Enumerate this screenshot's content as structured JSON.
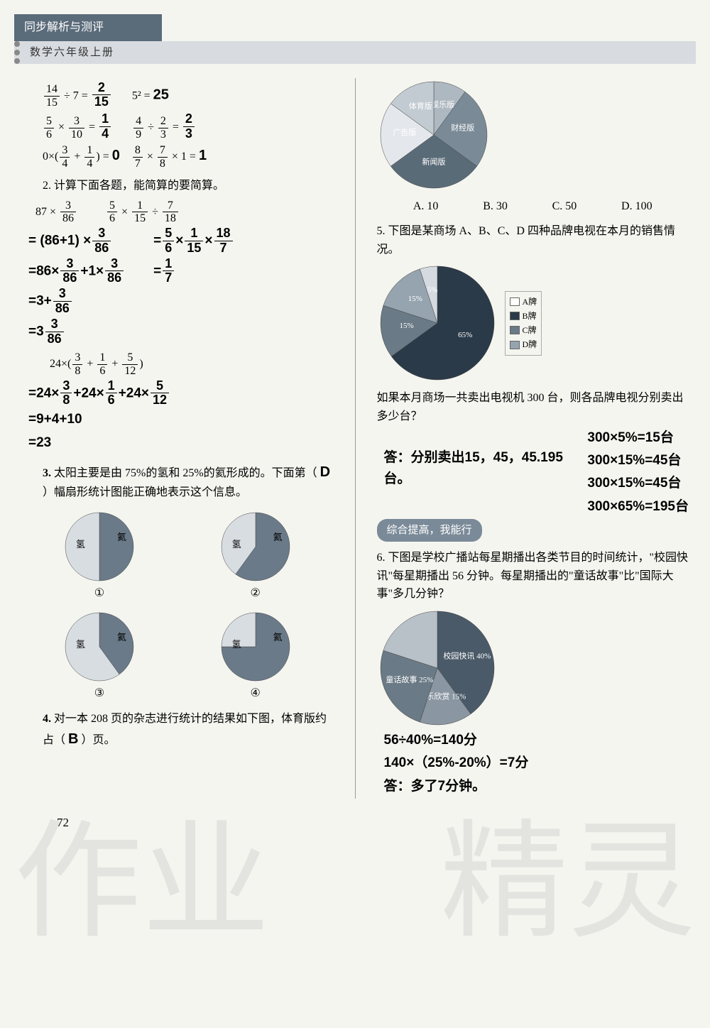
{
  "header": {
    "title": "同步解析与测评",
    "subtitle": "数学六年级上册"
  },
  "q1": {
    "eqs": [
      {
        "lhs": "14/15 ÷ 7 =",
        "ans": "2/15"
      },
      {
        "lhs": "5² =",
        "ans": "25"
      },
      {
        "lhs": "5/6 × 3/10 =",
        "ans": "1/4"
      },
      {
        "lhs": "4/9 ÷ 2/3 =",
        "ans": "2/3"
      },
      {
        "lhs": "0×(3/4 + 1/4) =",
        "ans": "0"
      },
      {
        "lhs": "8/7 × 7/8 × 1 =",
        "ans": "1"
      }
    ]
  },
  "q2": {
    "title": "2. 计算下面各题，能简算的要简算。",
    "prob_a": "87 × 3/86",
    "prob_b": "5/6 × 1/15 ÷ 7/18",
    "prob_c": "24×(3/8 + 1/6 + 5/12)",
    "work_a": [
      "= (86+1) × 3/86",
      "=86× 3/86 +1× 3/86",
      "=3+ 3/86",
      "=3 3/86"
    ],
    "work_b": [
      "= 5/6 × 1/15 × 18/7",
      "= 1/7"
    ],
    "work_c": [
      "=24× 3/8 +24× 1/6 +24× 5/12",
      "=9+4+10",
      "=23"
    ]
  },
  "q3": {
    "text": "3. 太阳主要是由 75%的氢和 25%的氦形成的。下面第（     ）幅扇形统计图能正确地表示这个信息。",
    "answer": "D",
    "labels": {
      "h": "氢",
      "he": "氦"
    },
    "opts": [
      "①",
      "②",
      "③",
      "④"
    ],
    "colors": {
      "dark": "#6a7a88",
      "light": "#d8dde2"
    }
  },
  "q4": {
    "text": "4. 对一本 208 页的杂志进行统计的结果如下图，体育版约占（     ）页。",
    "answer": "B",
    "options": [
      "A. 10",
      "B. 30",
      "C. 50",
      "D. 100"
    ],
    "pie": {
      "slices": [
        {
          "label": "娱乐版",
          "value": 10,
          "color": "#aeb8c0"
        },
        {
          "label": "财经版",
          "value": 25,
          "color": "#7a8a96"
        },
        {
          "label": "新闻版",
          "value": 30,
          "color": "#5a6b78"
        },
        {
          "label": "广告版",
          "value": 20,
          "color": "#e4e8ec"
        },
        {
          "label": "体育版",
          "value": 15,
          "color": "#c2cad2"
        }
      ]
    }
  },
  "q5": {
    "text": "5. 下图是某商场 A、B、C、D 四种品牌电视在本月的销售情况。",
    "pie": {
      "slices": [
        {
          "label": "65%",
          "value": 65,
          "color": "#2a3a48"
        },
        {
          "label": "15%",
          "value": 15,
          "color": "#6a7a86"
        },
        {
          "label": "15%",
          "value": 15,
          "color": "#96a4b0"
        },
        {
          "label": "5%",
          "value": 5,
          "color": "#d4dae0"
        }
      ],
      "legend": [
        {
          "label": "A牌",
          "color": "#ffffff"
        },
        {
          "label": "B牌",
          "color": "#2a3a48"
        },
        {
          "label": "C牌",
          "color": "#6a7a86"
        },
        {
          "label": "D牌",
          "color": "#96a4b0"
        }
      ]
    },
    "text2": "如果本月商场一共卖出电视机 300 台，则各品牌电视分别卖出多少台？",
    "ans_lines": [
      "300×5%=15台",
      "300×15%=45台",
      "300×15%=45台",
      "300×65%=195台"
    ],
    "ans_left": "答：分别卖出15，45，45.195台。",
    "badge": "综合提高，我能行"
  },
  "q6": {
    "text": "6. 下图是学校广播站每星期播出各类节目的时间统计，\"校园快讯\"每星期播出 56 分钟。每星期播出的\"童话故事\"比\"国际大事\"多几分钟？",
    "pie": {
      "slices": [
        {
          "label": "校园快讯 40%",
          "value": 40,
          "color": "#4a5a68"
        },
        {
          "label": "音乐欣赏 15%",
          "value": 15,
          "color": "#8a96a2"
        },
        {
          "label": "童话故事 25%",
          "value": 25,
          "color": "#6a7a86"
        },
        {
          "label": "",
          "value": 20,
          "color": "#b8c0c8"
        }
      ]
    },
    "work": [
      "56÷40%=140分",
      "140×（25%-20%）=7分",
      "答：多了7分钟。"
    ]
  },
  "page_num": "72",
  "watermark": {
    "left": "作业",
    "right": "精灵"
  }
}
